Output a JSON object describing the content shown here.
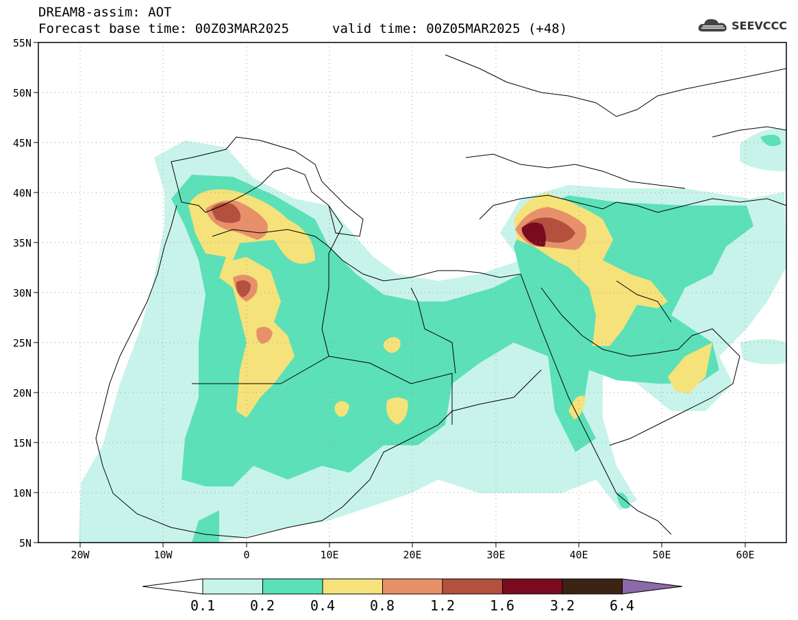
{
  "header": {
    "title": "DREAM8-assim: AOT",
    "base_time": "Forecast base time: 00Z03MAR2025",
    "valid_time": "valid time: 00Z05MAR2025 (+48)",
    "logo_text": "SEEVCCC"
  },
  "map": {
    "lat_labels": [
      "55N",
      "50N",
      "45N",
      "40N",
      "35N",
      "30N",
      "25N",
      "20N",
      "15N",
      "10N",
      "5N"
    ],
    "lon_labels": [
      "20W",
      "10W",
      "0",
      "10E",
      "20E",
      "30E",
      "40E",
      "50E",
      "60E"
    ],
    "lat_range": [
      5,
      55
    ],
    "lon_range": [
      -25,
      65
    ],
    "grid": "dotted"
  },
  "colorbar": {
    "labels": [
      "0.1",
      "0.2",
      "0.4",
      "0.8",
      "1.2",
      "1.6",
      "3.2",
      "6.4"
    ],
    "colors": [
      "#ffffff",
      "#c8f3ea",
      "#5ce0b8",
      "#f5e27a",
      "#e8906a",
      "#b3503e",
      "#7a0a1e",
      "#3b2414",
      "#8a6aa8"
    ]
  }
}
